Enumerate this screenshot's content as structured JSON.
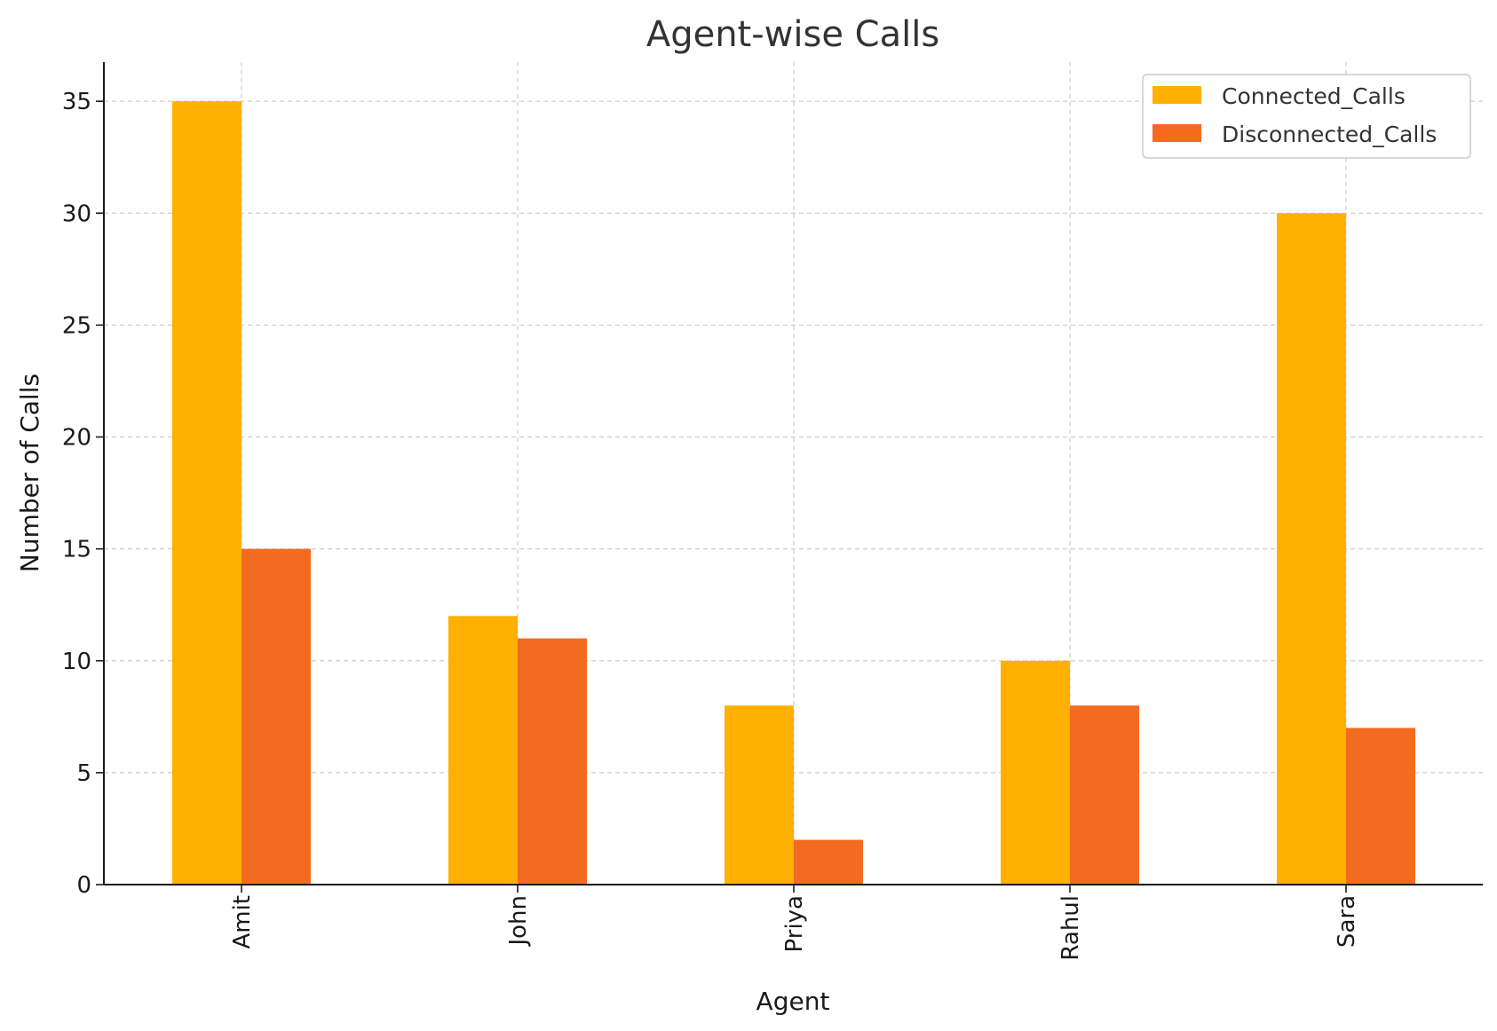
{
  "chart_data": {
    "type": "bar",
    "title": "Agent-wise Calls",
    "xlabel": "Agent",
    "ylabel": "Number of Calls",
    "categories": [
      "Amit",
      "John",
      "Priya",
      "Rahul",
      "Sara"
    ],
    "series": [
      {
        "name": "Connected_Calls",
        "values": [
          35,
          12,
          8,
          10,
          30
        ],
        "color": "#FFB000"
      },
      {
        "name": "Disconnected_Calls",
        "values": [
          15,
          11,
          2,
          8,
          7
        ],
        "color": "#F26B21"
      }
    ],
    "ylim": [
      0,
      36.75
    ],
    "yticks": [
      0,
      5,
      10,
      15,
      20,
      25,
      30,
      35
    ],
    "grid": true,
    "legend_position": "top-right"
  }
}
